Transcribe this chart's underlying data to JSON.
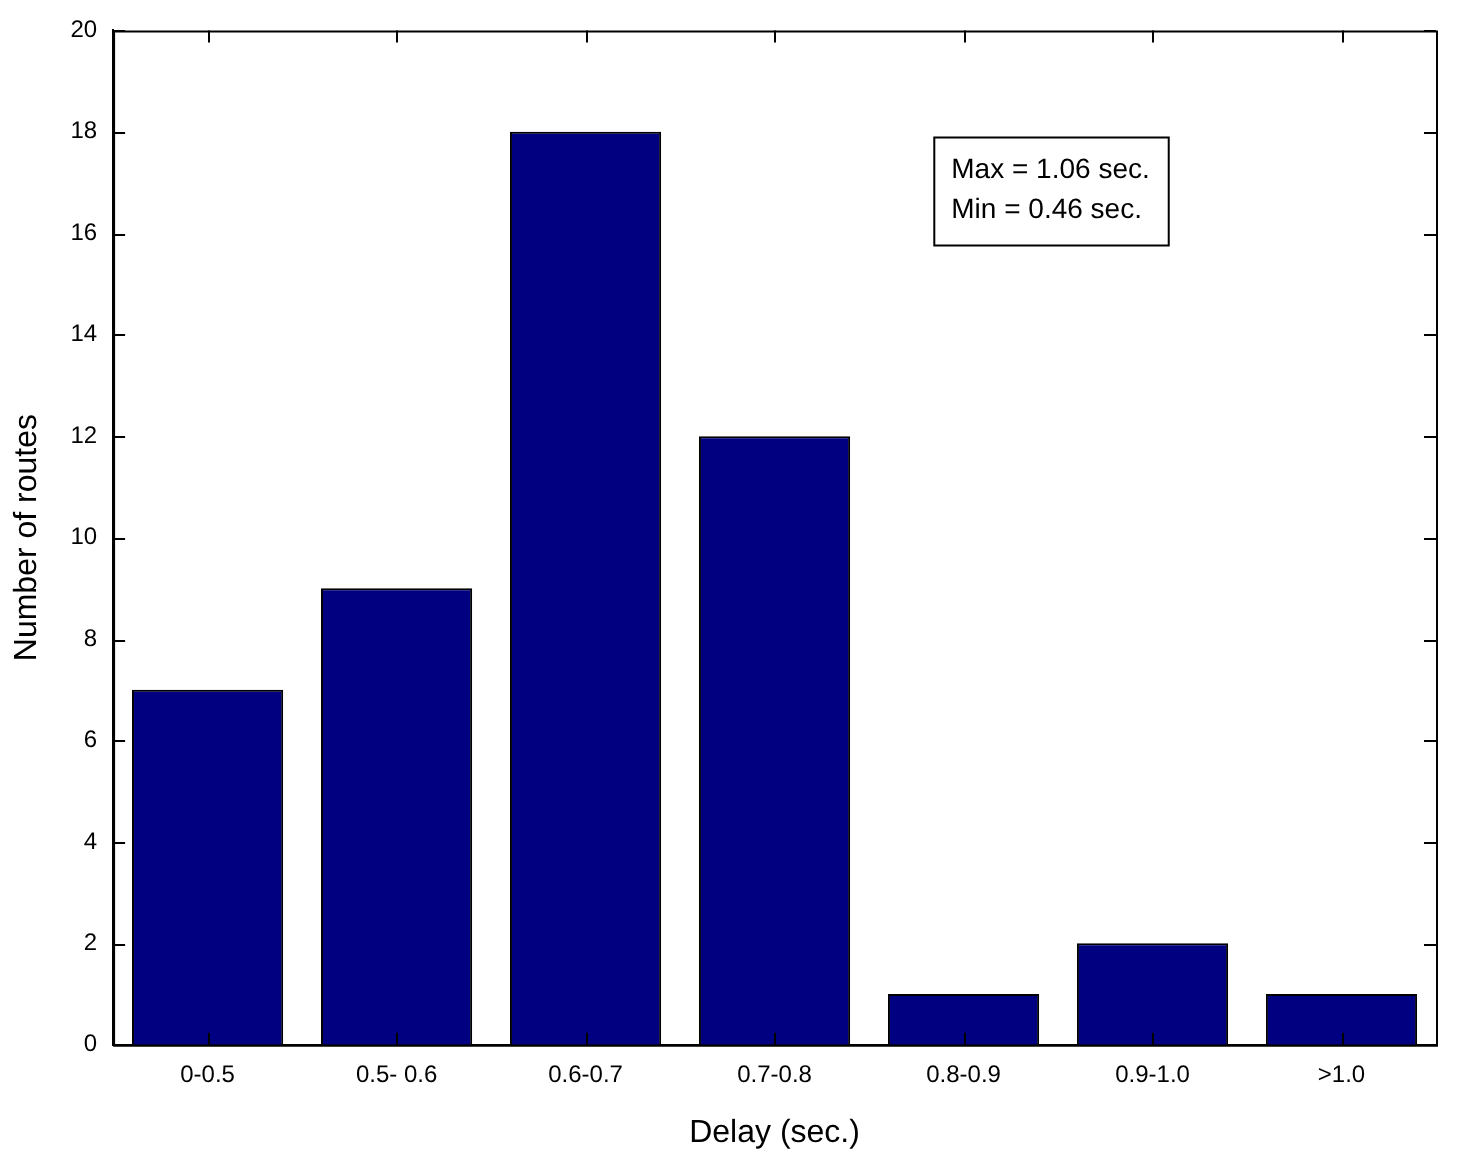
{
  "chart_data": {
    "type": "bar",
    "xlabel": "Delay (sec.)",
    "ylabel": "Number of routes",
    "categories": [
      "0-0.5",
      "0.5- 0.6",
      "0.6-0.7",
      "0.7-0.8",
      "0.8-0.9",
      "0.9-1.0",
      ">1.0"
    ],
    "values": [
      7,
      9,
      18,
      12,
      1,
      2,
      1
    ],
    "color": "#000080",
    "ylim": [
      0,
      20
    ],
    "yticks": [
      0,
      2,
      4,
      6,
      8,
      10,
      12,
      14,
      16,
      18,
      20
    ],
    "annotations": [
      "Max = 1.06 sec.",
      "Min = 0.46 sec."
    ]
  }
}
